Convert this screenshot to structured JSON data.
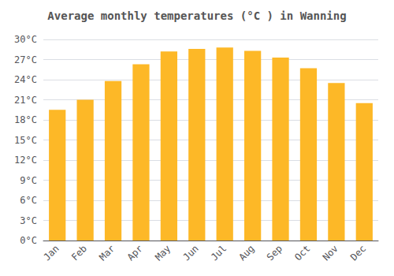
{
  "chart_data": {
    "type": "bar",
    "title": "Average monthly temperatures (°C ) in Wanning",
    "categories": [
      "Jan",
      "Feb",
      "Mar",
      "Apr",
      "May",
      "Jun",
      "Jul",
      "Aug",
      "Sep",
      "Oct",
      "Nov",
      "Dec"
    ],
    "values": [
      19.5,
      21.0,
      23.8,
      26.3,
      28.2,
      28.6,
      28.8,
      28.3,
      27.3,
      25.7,
      23.5,
      20.5
    ],
    "color": "#FDB827",
    "ylim": [
      0,
      30
    ],
    "yticks": [
      {
        "value": 0,
        "label": "0°C"
      },
      {
        "value": 3,
        "label": "3°C"
      },
      {
        "value": 6,
        "label": "6°C"
      },
      {
        "value": 9,
        "label": "9°C"
      },
      {
        "value": 12,
        "label": "12°C"
      },
      {
        "value": 15,
        "label": "15°C"
      },
      {
        "value": 18,
        "label": "18°C"
      },
      {
        "value": 21,
        "label": "21°C"
      },
      {
        "value": 24,
        "label": "24°C"
      },
      {
        "value": 27,
        "label": "27°C"
      },
      {
        "value": 30,
        "label": "30°C"
      }
    ],
    "grid": true
  }
}
